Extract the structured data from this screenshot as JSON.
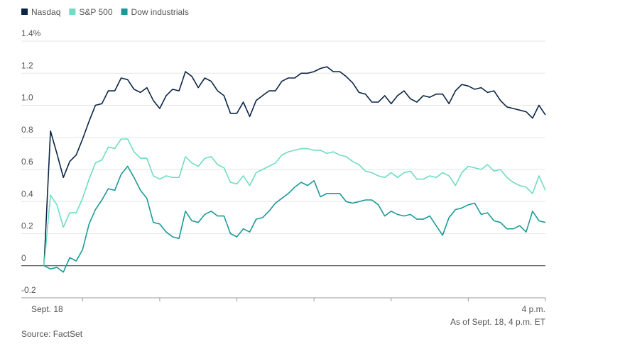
{
  "chart_data": {
    "type": "line",
    "categories": [
      "Sept. 18",
      null,
      null,
      null,
      null,
      null,
      null,
      null,
      null,
      null,
      null,
      null,
      null,
      null,
      null,
      null,
      null,
      null,
      null,
      null,
      null,
      null,
      null,
      null,
      null,
      null,
      null,
      null,
      null,
      null,
      null,
      null,
      null,
      null,
      null,
      null,
      null,
      null,
      null,
      null,
      null,
      null,
      null,
      null,
      null,
      null,
      null,
      null,
      null,
      null,
      null,
      null,
      null,
      null,
      null,
      null,
      null,
      null,
      null,
      null,
      null,
      null,
      null,
      null,
      null,
      null,
      null,
      null,
      null,
      null,
      null,
      null,
      null,
      null,
      null,
      null,
      null,
      null,
      "4 p.m."
    ],
    "xticks": [
      6,
      18,
      30,
      42,
      54,
      66,
      78
    ],
    "series": [
      {
        "name": "Nasdaq",
        "color": "#0b2545",
        "values": [
          0,
          0.84,
          0.7,
          0.55,
          0.65,
          0.69,
          0.79,
          0.9,
          1.0,
          1.01,
          1.09,
          1.09,
          1.17,
          1.16,
          1.1,
          1.08,
          1.11,
          1.03,
          0.98,
          1.06,
          1.1,
          1.09,
          1.21,
          1.18,
          1.11,
          1.17,
          1.15,
          1.09,
          1.06,
          0.95,
          0.95,
          1.02,
          0.93,
          1.03,
          1.06,
          1.09,
          1.09,
          1.15,
          1.17,
          1.17,
          1.2,
          1.2,
          1.21,
          1.23,
          1.24,
          1.21,
          1.21,
          1.18,
          1.14,
          1.08,
          1.07,
          1.02,
          1.02,
          1.06,
          1.01,
          1.06,
          1.09,
          1.04,
          1.02,
          1.06,
          1.05,
          1.07,
          1.07,
          1.01,
          1.09,
          1.13,
          1.12,
          1.1,
          1.11,
          1.08,
          1.09,
          1.03,
          0.99,
          0.98,
          0.97,
          0.96,
          0.92,
          1.0,
          0.94
        ]
      },
      {
        "name": "S&P 500",
        "color": "#6fdcc3",
        "values": [
          0,
          0.44,
          0.38,
          0.24,
          0.33,
          0.33,
          0.42,
          0.54,
          0.64,
          0.66,
          0.74,
          0.73,
          0.79,
          0.79,
          0.71,
          0.67,
          0.67,
          0.56,
          0.54,
          0.56,
          0.55,
          0.55,
          0.68,
          0.64,
          0.62,
          0.67,
          0.68,
          0.63,
          0.61,
          0.52,
          0.51,
          0.56,
          0.5,
          0.58,
          0.6,
          0.62,
          0.64,
          0.69,
          0.71,
          0.72,
          0.73,
          0.73,
          0.72,
          0.72,
          0.7,
          0.71,
          0.69,
          0.68,
          0.65,
          0.63,
          0.59,
          0.58,
          0.56,
          0.55,
          0.58,
          0.55,
          0.58,
          0.59,
          0.54,
          0.54,
          0.56,
          0.55,
          0.58,
          0.56,
          0.5,
          0.58,
          0.62,
          0.61,
          0.6,
          0.63,
          0.59,
          0.6,
          0.55,
          0.52,
          0.5,
          0.49,
          0.45,
          0.56,
          0.47
        ]
      },
      {
        "name": "Dow industrials",
        "color": "#1a9a96",
        "values": [
          0,
          -0.02,
          -0.01,
          -0.04,
          0.05,
          0.03,
          0.1,
          0.26,
          0.35,
          0.41,
          0.48,
          0.47,
          0.57,
          0.62,
          0.55,
          0.47,
          0.42,
          0.27,
          0.26,
          0.21,
          0.18,
          0.17,
          0.34,
          0.28,
          0.27,
          0.32,
          0.34,
          0.31,
          0.31,
          0.2,
          0.18,
          0.23,
          0.21,
          0.29,
          0.3,
          0.34,
          0.39,
          0.42,
          0.45,
          0.49,
          0.52,
          0.5,
          0.53,
          0.43,
          0.45,
          0.45,
          0.45,
          0.4,
          0.39,
          0.4,
          0.41,
          0.41,
          0.38,
          0.31,
          0.34,
          0.32,
          0.31,
          0.32,
          0.29,
          0.29,
          0.31,
          0.25,
          0.19,
          0.3,
          0.35,
          0.36,
          0.38,
          0.39,
          0.32,
          0.33,
          0.28,
          0.27,
          0.23,
          0.23,
          0.25,
          0.21,
          0.34,
          0.28,
          0.27
        ]
      }
    ],
    "ylim": [
      -0.2,
      1.4
    ],
    "yticks": [
      {
        "value": 1.4,
        "label": "1.4%"
      },
      1.2,
      {
        "value": 1,
        "label": "1.0"
      },
      0.8,
      0.6,
      0.4,
      0.2,
      0,
      -0.2
    ],
    "grid": true,
    "legend": "top",
    "note": "As of Sept. 18, 4 p.m. ET",
    "source": "Source: FactSet"
  }
}
